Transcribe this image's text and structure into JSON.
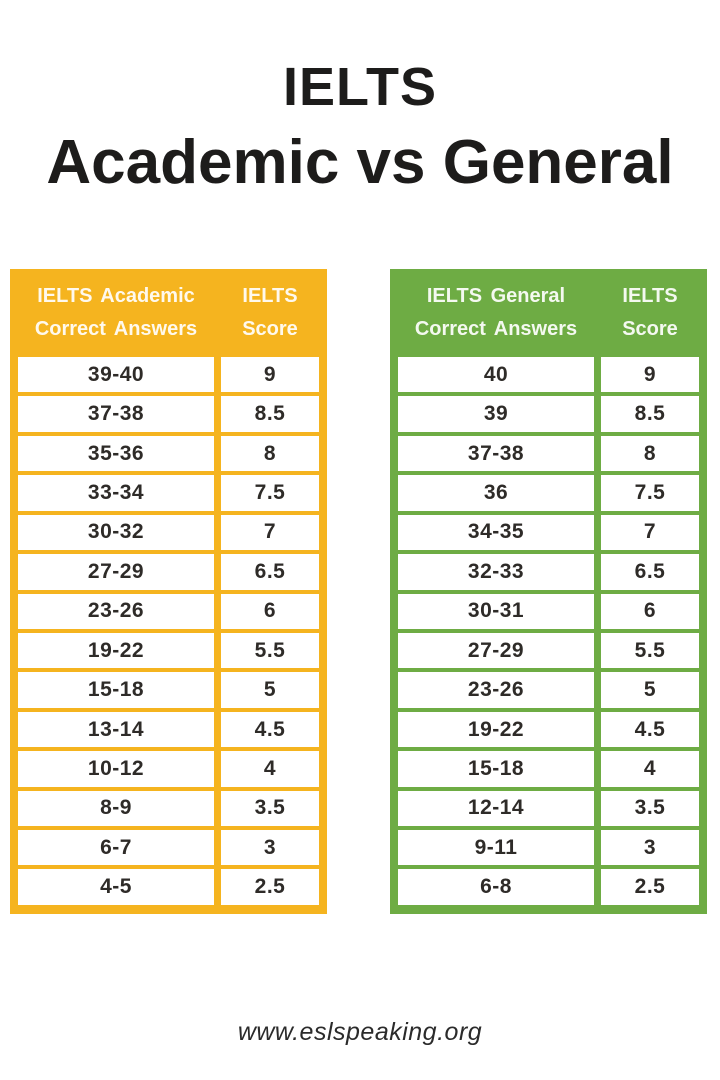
{
  "title": {
    "line1": "IELTS",
    "line2": "Academic vs General"
  },
  "footer": {
    "website": "www.eslspeaking.org"
  },
  "chart_data": [
    {
      "type": "table",
      "title": "IELTS Academic score conversion",
      "accent_color": "#F5B41F",
      "header": {
        "answers_line1": "IELTS Academic",
        "answers_line2": "Correct Answers",
        "score_line1": "IELTS",
        "score_line2": "Score"
      },
      "columns": [
        "IELTS Academic Correct Answers",
        "IELTS Score"
      ],
      "rows": [
        {
          "answers": "39-40",
          "score": "9"
        },
        {
          "answers": "37-38",
          "score": "8.5"
        },
        {
          "answers": "35-36",
          "score": "8"
        },
        {
          "answers": "33-34",
          "score": "7.5"
        },
        {
          "answers": "30-32",
          "score": "7"
        },
        {
          "answers": "27-29",
          "score": "6.5"
        },
        {
          "answers": "23-26",
          "score": "6"
        },
        {
          "answers": "19-22",
          "score": "5.5"
        },
        {
          "answers": "15-18",
          "score": "5"
        },
        {
          "answers": "13-14",
          "score": "4.5"
        },
        {
          "answers": "10-12",
          "score": "4"
        },
        {
          "answers": "8-9",
          "score": "3.5"
        },
        {
          "answers": "6-7",
          "score": "3"
        },
        {
          "answers": "4-5",
          "score": "2.5"
        }
      ]
    },
    {
      "type": "table",
      "title": "IELTS General score conversion",
      "accent_color": "#6EAC44",
      "header": {
        "answers_line1": "IELTS General",
        "answers_line2": "Correct Answers",
        "score_line1": "IELTS",
        "score_line2": "Score"
      },
      "columns": [
        "IELTS General Correct Answers",
        "IELTS Score"
      ],
      "rows": [
        {
          "answers": "40",
          "score": "9"
        },
        {
          "answers": "39",
          "score": "8.5"
        },
        {
          "answers": "37-38",
          "score": "8"
        },
        {
          "answers": "36",
          "score": "7.5"
        },
        {
          "answers": "34-35",
          "score": "7"
        },
        {
          "answers": "32-33",
          "score": "6.5"
        },
        {
          "answers": "30-31",
          "score": "6"
        },
        {
          "answers": "27-29",
          "score": "5.5"
        },
        {
          "answers": "23-26",
          "score": "5"
        },
        {
          "answers": "19-22",
          "score": "4.5"
        },
        {
          "answers": "15-18",
          "score": "4"
        },
        {
          "answers": "12-14",
          "score": "3.5"
        },
        {
          "answers": "9-11",
          "score": "3"
        },
        {
          "answers": "6-8",
          "score": "2.5"
        }
      ]
    }
  ]
}
